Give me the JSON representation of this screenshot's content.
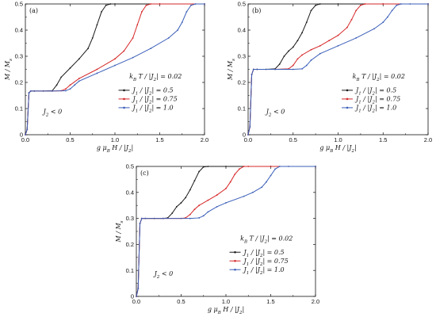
{
  "chart_data": [
    {
      "type": "line",
      "panel": "(a)",
      "xlabel": "g μB H / |J2|",
      "ylabel": "M / Ms",
      "xlim": [
        0,
        2.0
      ],
      "ylim": [
        0,
        0.5
      ],
      "xticks": [
        "0.0",
        "0.5",
        "1.0",
        "1.5",
        "2.0"
      ],
      "yticks": [
        "0",
        "0.1",
        "0.2",
        "0.3",
        "0.4",
        "0.5"
      ],
      "annotations": [
        "kB T / |J2| = 0.02",
        "J2 < 0"
      ],
      "legend": "right",
      "series": [
        {
          "name": "J1 / |J2| = 0.5",
          "color": "#1a1a1a",
          "x": [
            0,
            0.02,
            0.04,
            0.06,
            0.1,
            0.2,
            0.3,
            0.35,
            0.4,
            0.5,
            0.6,
            0.7,
            0.75,
            0.8,
            0.85,
            0.9,
            0.95,
            1.0,
            1.5,
            2.0
          ],
          "y": [
            0,
            0.02,
            0.16,
            0.167,
            0.167,
            0.167,
            0.168,
            0.19,
            0.22,
            0.255,
            0.29,
            0.33,
            0.37,
            0.42,
            0.47,
            0.495,
            0.5,
            0.5,
            0.5,
            0.5
          ]
        },
        {
          "name": "J1 / |J2| = 0.75",
          "color": "#d62728",
          "x": [
            0,
            0.02,
            0.04,
            0.06,
            0.1,
            0.3,
            0.4,
            0.45,
            0.5,
            0.6,
            0.8,
            1.0,
            1.1,
            1.2,
            1.25,
            1.3,
            1.35,
            1.4,
            1.5,
            2.0
          ],
          "y": [
            0,
            0.02,
            0.16,
            0.167,
            0.167,
            0.167,
            0.168,
            0.175,
            0.19,
            0.215,
            0.25,
            0.29,
            0.32,
            0.37,
            0.42,
            0.47,
            0.495,
            0.5,
            0.5,
            0.5
          ]
        },
        {
          "name": "J1 / |J2| = 1.0",
          "color": "#3b5fb8",
          "x": [
            0,
            0.02,
            0.04,
            0.06,
            0.1,
            0.3,
            0.45,
            0.5,
            0.55,
            0.6,
            0.8,
            1.0,
            1.2,
            1.4,
            1.6,
            1.7,
            1.75,
            1.8,
            1.85,
            1.9,
            2.0
          ],
          "y": [
            0,
            0.02,
            0.16,
            0.167,
            0.167,
            0.167,
            0.168,
            0.175,
            0.19,
            0.205,
            0.235,
            0.265,
            0.295,
            0.33,
            0.37,
            0.4,
            0.43,
            0.47,
            0.495,
            0.5,
            0.5
          ]
        }
      ]
    },
    {
      "type": "line",
      "panel": "(b)",
      "xlabel": "g μB H / |J2|",
      "ylabel": "M / Ms",
      "xlim": [
        0,
        2.0
      ],
      "ylim": [
        0,
        0.5
      ],
      "xticks": [
        "0.0",
        "0.5",
        "1.0",
        "1.5",
        "2.0"
      ],
      "yticks": [
        "0",
        "0.1",
        "0.2",
        "0.3",
        "0.4",
        "0.5"
      ],
      "annotations": [
        "kB T / |J2| = 0.02",
        "J2 < 0"
      ],
      "legend": "right",
      "series": [
        {
          "name": "J1 / |J2| = 0.5",
          "color": "#1a1a1a",
          "x": [
            0,
            0.02,
            0.04,
            0.06,
            0.1,
            0.2,
            0.3,
            0.35,
            0.4,
            0.45,
            0.5,
            0.55,
            0.6,
            0.65,
            0.7,
            0.75,
            0.8,
            1.0,
            1.5,
            2.0
          ],
          "y": [
            0,
            0.03,
            0.23,
            0.25,
            0.25,
            0.25,
            0.252,
            0.27,
            0.3,
            0.32,
            0.335,
            0.36,
            0.39,
            0.43,
            0.475,
            0.495,
            0.5,
            0.5,
            0.5,
            0.5
          ]
        },
        {
          "name": "J1 / |J2| = 0.75",
          "color": "#d62728",
          "x": [
            0,
            0.02,
            0.04,
            0.06,
            0.1,
            0.3,
            0.45,
            0.5,
            0.55,
            0.6,
            0.7,
            0.8,
            0.9,
            1.0,
            1.1,
            1.15,
            1.2,
            1.25,
            1.3,
            1.5,
            2.0
          ],
          "y": [
            0,
            0.03,
            0.23,
            0.25,
            0.25,
            0.25,
            0.252,
            0.265,
            0.29,
            0.305,
            0.325,
            0.34,
            0.36,
            0.38,
            0.41,
            0.44,
            0.475,
            0.495,
            0.5,
            0.5,
            0.5
          ]
        },
        {
          "name": "J1 / |J2| = 1.0",
          "color": "#3b5fb8",
          "x": [
            0,
            0.02,
            0.04,
            0.06,
            0.1,
            0.3,
            0.5,
            0.6,
            0.65,
            0.7,
            0.8,
            1.0,
            1.2,
            1.4,
            1.5,
            1.55,
            1.6,
            1.65,
            1.7,
            1.8,
            2.0
          ],
          "y": [
            0,
            0.03,
            0.23,
            0.25,
            0.25,
            0.25,
            0.25,
            0.252,
            0.265,
            0.285,
            0.31,
            0.34,
            0.37,
            0.405,
            0.43,
            0.45,
            0.475,
            0.495,
            0.5,
            0.5,
            0.5
          ]
        }
      ]
    },
    {
      "type": "line",
      "panel": "(c)",
      "xlabel": "g μB H / |J2|",
      "ylabel": "M / Ms",
      "xlim": [
        0,
        2.0
      ],
      "ylim": [
        0,
        0.5
      ],
      "xticks": [
        "0.0",
        "0.5",
        "1.0",
        "1.5",
        "2.0"
      ],
      "yticks": [
        "0",
        "0.1",
        "0.2",
        "0.3",
        "0.4",
        "0.5"
      ],
      "annotations": [
        "kB T / |J2| = 0.02",
        "J2 < 0"
      ],
      "legend": "right",
      "series": [
        {
          "name": "J1 / |J2| = 0.5",
          "color": "#1a1a1a",
          "x": [
            0,
            0.02,
            0.04,
            0.06,
            0.1,
            0.2,
            0.3,
            0.35,
            0.4,
            0.45,
            0.5,
            0.55,
            0.6,
            0.65,
            0.7,
            0.75,
            0.8,
            1.0,
            1.5,
            2.0
          ],
          "y": [
            0,
            0.03,
            0.28,
            0.3,
            0.3,
            0.3,
            0.3,
            0.302,
            0.32,
            0.345,
            0.36,
            0.38,
            0.41,
            0.445,
            0.48,
            0.498,
            0.5,
            0.5,
            0.5,
            0.5
          ]
        },
        {
          "name": "J1 / |J2| = 0.75",
          "color": "#d62728",
          "x": [
            0,
            0.02,
            0.04,
            0.06,
            0.1,
            0.3,
            0.5,
            0.55,
            0.6,
            0.65,
            0.7,
            0.8,
            0.9,
            1.0,
            1.05,
            1.1,
            1.15,
            1.2,
            1.25,
            1.5,
            2.0
          ],
          "y": [
            0,
            0.03,
            0.28,
            0.3,
            0.3,
            0.3,
            0.3,
            0.302,
            0.315,
            0.335,
            0.35,
            0.37,
            0.39,
            0.415,
            0.44,
            0.47,
            0.49,
            0.5,
            0.5,
            0.5,
            0.5
          ]
        },
        {
          "name": "J1 / |J2| = 1.0",
          "color": "#3b5fb8",
          "x": [
            0,
            0.02,
            0.04,
            0.06,
            0.1,
            0.3,
            0.6,
            0.7,
            0.75,
            0.8,
            0.9,
            1.0,
            1.2,
            1.3,
            1.4,
            1.45,
            1.5,
            1.55,
            1.6,
            1.7,
            2.0
          ],
          "y": [
            0,
            0.03,
            0.28,
            0.3,
            0.3,
            0.3,
            0.3,
            0.302,
            0.31,
            0.325,
            0.345,
            0.36,
            0.385,
            0.4,
            0.42,
            0.44,
            0.465,
            0.49,
            0.5,
            0.5,
            0.5
          ]
        }
      ]
    }
  ]
}
